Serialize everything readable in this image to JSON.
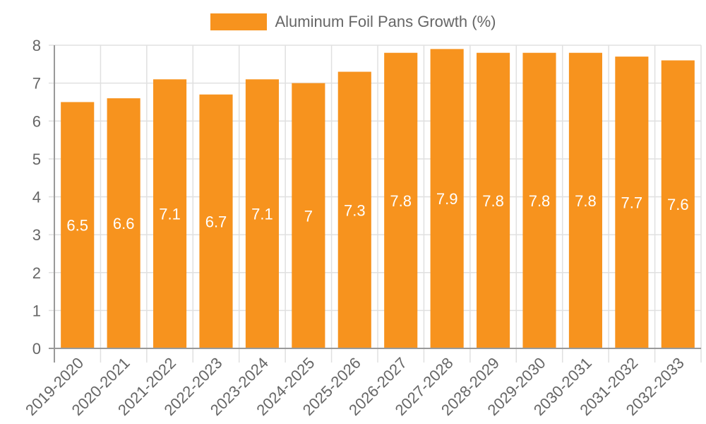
{
  "chart_data": {
    "type": "bar",
    "title": "",
    "xlabel": "",
    "ylabel": "",
    "categories": [
      "2019-2020",
      "2020-2021",
      "2021-2022",
      "2022-2023",
      "2023-2024",
      "2024-2025",
      "2025-2026",
      "2026-2027",
      "2027-2028",
      "2028-2029",
      "2029-2030",
      "2030-2031",
      "2031-2032",
      "2032-2033"
    ],
    "series": [
      {
        "name": "Aluminum Foil Pans Growth (%)",
        "color": "#f7931e",
        "values": [
          6.5,
          6.6,
          7.1,
          6.7,
          7.1,
          7,
          7.3,
          7.8,
          7.9,
          7.8,
          7.8,
          7.8,
          7.7,
          7.6
        ],
        "data_labels": [
          "6.5",
          "6.6",
          "7.1",
          "6.7",
          "7.1",
          "7",
          "7.3",
          "7.8",
          "7.9",
          "7.8",
          "7.8",
          "7.8",
          "7.7",
          "7.6"
        ]
      }
    ],
    "ylim": [
      0,
      8
    ],
    "yticks": [
      0,
      1,
      2,
      3,
      4,
      5,
      6,
      7,
      8
    ],
    "grid": true,
    "legend_position": "top",
    "x_tick_rotation": -45
  },
  "legend": {
    "label": "Aluminum Foil Pans Growth (%)",
    "color": "#f7931e"
  },
  "colors": {
    "bar": "#f7931e",
    "grid": "#e0e0e0",
    "axis": "#999999",
    "tick_text": "#666666",
    "data_label": "#ffffff"
  }
}
